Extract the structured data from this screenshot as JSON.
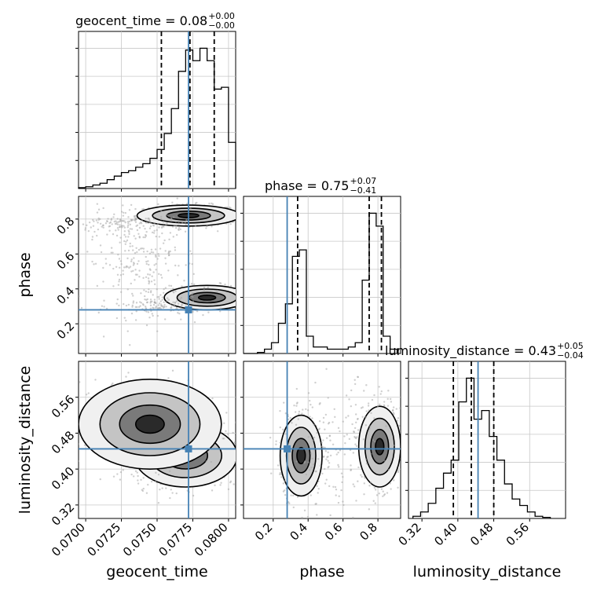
{
  "colors": {
    "truth": "#4682b4",
    "grid": "#c8c8c8",
    "hist": "#000000",
    "scatter": "#a8a8a8"
  },
  "chart_data": {
    "type": "corner",
    "parameters": [
      "geocent_time",
      "phase",
      "luminosity_distance"
    ],
    "truths": {
      "geocent_time": 0.0772,
      "phase": 0.28,
      "luminosity_distance": 0.445
    },
    "ranges": {
      "geocent_time": [
        0.0695,
        0.0805
      ],
      "phase": [
        0.03,
        0.93
      ],
      "luminosity_distance": [
        0.29,
        0.64
      ]
    },
    "ticks": {
      "geocent_time": [
        "0.0700",
        "0.0725",
        "0.0750",
        "0.0775",
        "0.0800"
      ],
      "phase": [
        "0.2",
        "0.4",
        "0.6",
        "0.8"
      ],
      "luminosity_distance": [
        "0.32",
        "0.40",
        "0.48",
        "0.56"
      ]
    },
    "titles": [
      {
        "param": "geocent_time",
        "main": "geocent_time = 0.08",
        "plus": "+0.00",
        "minus": "−0.00"
      },
      {
        "param": "phase",
        "main": "phase = 0.75",
        "plus": "+0.07",
        "minus": "−0.41"
      },
      {
        "param": "luminosity_distance",
        "main": "luminosity_distance = 0.43",
        "plus": "+0.05",
        "minus": "−0.04"
      }
    ],
    "quantile_lines": {
      "geocent_time": [
        0.0753,
        0.0773,
        0.079
      ],
      "phase": [
        0.34,
        0.75,
        0.82
      ],
      "luminosity_distance": [
        0.39,
        0.43,
        0.48
      ]
    },
    "histograms": {
      "geocent_time": {
        "edges": [
          0.0695,
          0.07,
          0.0705,
          0.071,
          0.0715,
          0.072,
          0.0725,
          0.073,
          0.0735,
          0.074,
          0.0745,
          0.075,
          0.0755,
          0.076,
          0.0765,
          0.077,
          0.0775,
          0.078,
          0.0785,
          0.079,
          0.0795,
          0.08,
          0.0805
        ],
        "counts": [
          0.5,
          1,
          2,
          3,
          5,
          7,
          9,
          10,
          12,
          14,
          17,
          22,
          31,
          45,
          66,
          78,
          72,
          79,
          72,
          56,
          57,
          26
        ]
      },
      "phase": {
        "edges": [
          0.03,
          0.07,
          0.11,
          0.15,
          0.19,
          0.23,
          0.27,
          0.31,
          0.35,
          0.39,
          0.43,
          0.47,
          0.51,
          0.55,
          0.59,
          0.63,
          0.67,
          0.71,
          0.75,
          0.79,
          0.83,
          0.87,
          0.91
        ],
        "counts": [
          0,
          0,
          0.5,
          2,
          5,
          14,
          23,
          45,
          48,
          8,
          3,
          3,
          2,
          2,
          2,
          3,
          5,
          34,
          65,
          59,
          8,
          2
        ]
      },
      "luminosity_distance": {
        "edges": [
          0.3,
          0.317,
          0.334,
          0.351,
          0.368,
          0.385,
          0.402,
          0.419,
          0.436,
          0.453,
          0.47,
          0.487,
          0.504,
          0.521,
          0.538,
          0.555,
          0.572,
          0.589,
          0.606
        ],
        "counts": [
          1,
          3,
          7,
          14,
          21,
          27,
          54,
          65,
          46,
          50,
          38,
          27,
          16,
          9,
          6,
          3,
          1,
          0.5
        ]
      }
    },
    "axis_labels": {
      "geocent_time": "geocent_time",
      "phase": "phase",
      "luminosity_distance": "luminosity_distance"
    },
    "grid": true
  }
}
